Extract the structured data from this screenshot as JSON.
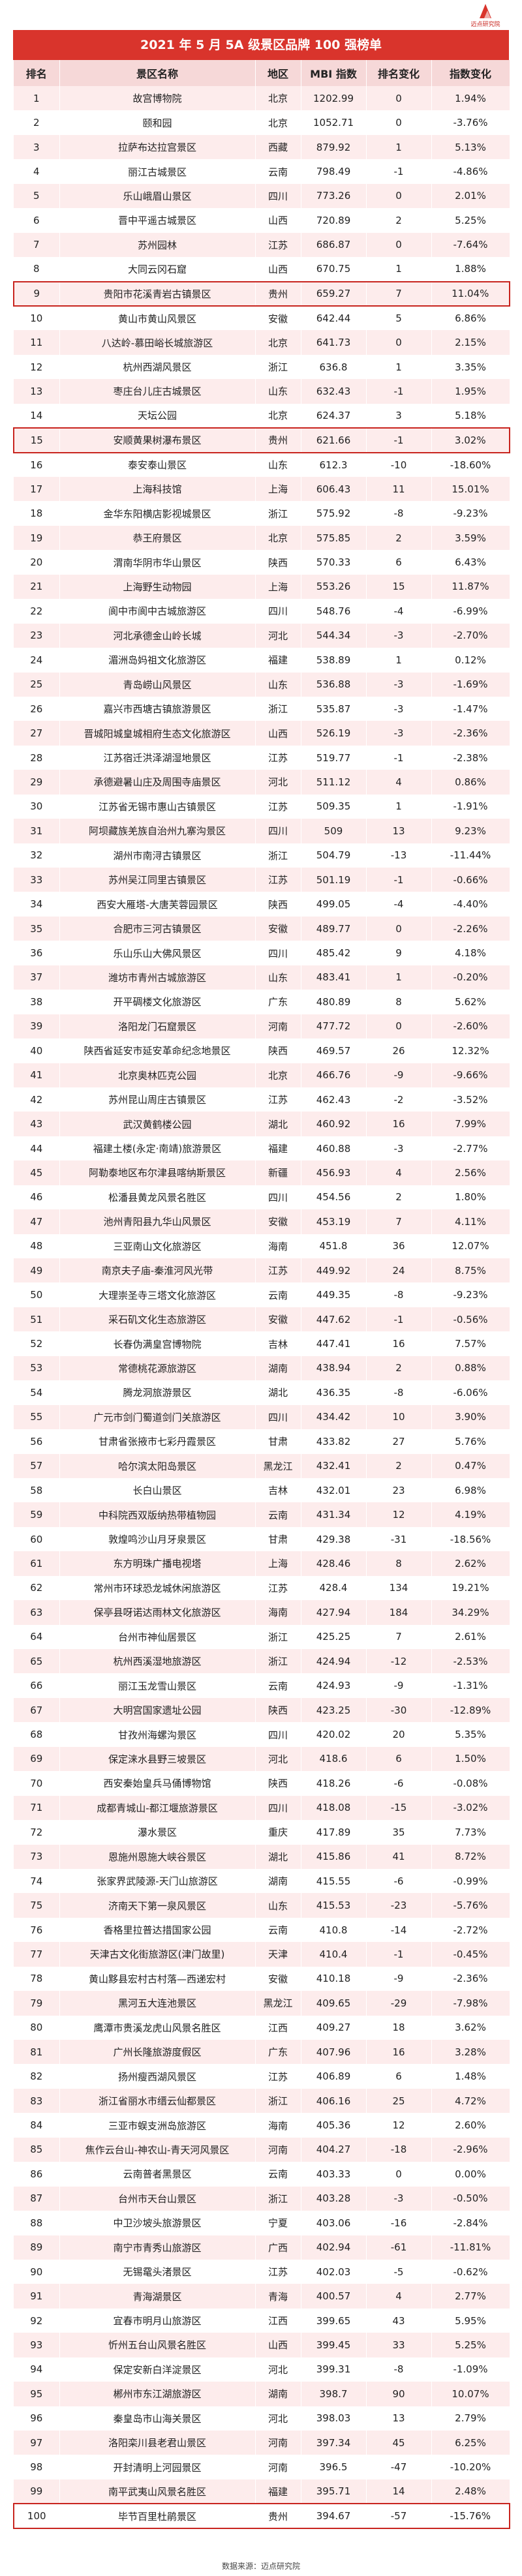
{
  "logo": {
    "text": "迈点研究院",
    "icon": "red-peak-logo-icon"
  },
  "title": "2021 年 5 月 5A 级景区品牌 100 强榜单",
  "footer": "数据来源：迈点研究院",
  "colors": {
    "title_bg": "#d9342c",
    "header_bg": "#f6d8d8",
    "stripe": "#fdecec",
    "highlight": "#c8241e"
  },
  "chart_data": {
    "type": "table",
    "columns": [
      "排名",
      "景区名称",
      "地区",
      "MBI 指数",
      "排名变化",
      "指数变化"
    ],
    "highlighted_ranks": [
      9,
      15,
      100
    ],
    "rows": [
      [
        "1",
        "故宫博物院",
        "北京",
        "1202.99",
        "0",
        "1.94%"
      ],
      [
        "2",
        "颐和园",
        "北京",
        "1052.71",
        "0",
        "-3.76%"
      ],
      [
        "3",
        "拉萨布达拉宫景区",
        "西藏",
        "879.92",
        "1",
        "5.13%"
      ],
      [
        "4",
        "丽江古城景区",
        "云南",
        "798.49",
        "-1",
        "-4.86%"
      ],
      [
        "5",
        "乐山峨眉山景区",
        "四川",
        "773.26",
        "0",
        "2.01%"
      ],
      [
        "6",
        "晋中平遥古城景区",
        "山西",
        "720.89",
        "2",
        "5.25%"
      ],
      [
        "7",
        "苏州园林",
        "江苏",
        "686.87",
        "0",
        "-7.64%"
      ],
      [
        "8",
        "大同云冈石窟",
        "山西",
        "670.75",
        "1",
        "1.88%"
      ],
      [
        "9",
        "贵阳市花溪青岩古镇景区",
        "贵州",
        "659.27",
        "7",
        "11.04%"
      ],
      [
        "10",
        "黄山市黄山风景区",
        "安徽",
        "642.44",
        "5",
        "6.86%"
      ],
      [
        "11",
        "八达岭-慕田峪长城旅游区",
        "北京",
        "641.73",
        "0",
        "2.15%"
      ],
      [
        "12",
        "杭州西湖风景区",
        "浙江",
        "636.8",
        "1",
        "3.35%"
      ],
      [
        "13",
        "枣庄台儿庄古城景区",
        "山东",
        "632.43",
        "-1",
        "1.95%"
      ],
      [
        "14",
        "天坛公园",
        "北京",
        "624.37",
        "3",
        "5.18%"
      ],
      [
        "15",
        "安顺黄果树瀑布景区",
        "贵州",
        "621.66",
        "-1",
        "3.02%"
      ],
      [
        "16",
        "泰安泰山景区",
        "山东",
        "612.3",
        "-10",
        "-18.60%"
      ],
      [
        "17",
        "上海科技馆",
        "上海",
        "606.43",
        "11",
        "15.01%"
      ],
      [
        "18",
        "金华东阳横店影视城景区",
        "浙江",
        "575.92",
        "-8",
        "-9.23%"
      ],
      [
        "19",
        "恭王府景区",
        "北京",
        "575.85",
        "2",
        "3.59%"
      ],
      [
        "20",
        "渭南华阴市华山景区",
        "陕西",
        "570.33",
        "6",
        "6.43%"
      ],
      [
        "21",
        "上海野生动物园",
        "上海",
        "553.26",
        "15",
        "11.87%"
      ],
      [
        "22",
        "阆中市阆中古城旅游区",
        "四川",
        "548.76",
        "-4",
        "-6.99%"
      ],
      [
        "23",
        "河北承德金山岭长城",
        "河北",
        "544.34",
        "-3",
        "-2.70%"
      ],
      [
        "24",
        "湄洲岛妈祖文化旅游区",
        "福建",
        "538.89",
        "1",
        "0.12%"
      ],
      [
        "25",
        "青岛崂山风景区",
        "山东",
        "536.88",
        "-3",
        "-1.69%"
      ],
      [
        "26",
        "嘉兴市西塘古镇旅游景区",
        "浙江",
        "535.87",
        "-3",
        "-1.47%"
      ],
      [
        "27",
        "晋城阳城皇城相府生态文化旅游区",
        "山西",
        "526.19",
        "-3",
        "-2.36%"
      ],
      [
        "28",
        "江苏宿迁洪泽湖湿地景区",
        "江苏",
        "519.77",
        "-1",
        "-2.38%"
      ],
      [
        "29",
        "承德避暑山庄及周围寺庙景区",
        "河北",
        "511.12",
        "4",
        "0.86%"
      ],
      [
        "30",
        "江苏省无锡市惠山古镇景区",
        "江苏",
        "509.35",
        "1",
        "-1.91%"
      ],
      [
        "31",
        "阿坝藏族羌族自治州九寨沟景区",
        "四川",
        "509",
        "13",
        "9.23%"
      ],
      [
        "32",
        "湖州市南浔古镇景区",
        "浙江",
        "504.79",
        "-13",
        "-11.44%"
      ],
      [
        "33",
        "苏州吴江同里古镇景区",
        "江苏",
        "501.19",
        "-1",
        "-0.66%"
      ],
      [
        "34",
        "西安大雁塔-大唐芙蓉园景区",
        "陕西",
        "499.05",
        "-4",
        "-4.40%"
      ],
      [
        "35",
        "合肥市三河古镇景区",
        "安徽",
        "489.77",
        "0",
        "-2.26%"
      ],
      [
        "36",
        "乐山乐山大佛风景区",
        "四川",
        "485.42",
        "9",
        "4.18%"
      ],
      [
        "37",
        "潍坊市青州古城旅游区",
        "山东",
        "483.41",
        "1",
        "-0.20%"
      ],
      [
        "38",
        "开平碉楼文化旅游区",
        "广东",
        "480.89",
        "8",
        "5.62%"
      ],
      [
        "39",
        "洛阳龙门石窟景区",
        "河南",
        "477.72",
        "0",
        "-2.60%"
      ],
      [
        "40",
        "陕西省延安市延安革命纪念地景区",
        "陕西",
        "469.57",
        "26",
        "12.32%"
      ],
      [
        "41",
        "北京奥林匹克公园",
        "北京",
        "466.76",
        "-9",
        "-9.66%"
      ],
      [
        "42",
        "苏州昆山周庄古镇景区",
        "江苏",
        "462.43",
        "-2",
        "-3.52%"
      ],
      [
        "43",
        "武汉黄鹤楼公园",
        "湖北",
        "460.92",
        "16",
        "7.99%"
      ],
      [
        "44",
        "福建土楼(永定·南靖)旅游景区",
        "福建",
        "460.88",
        "-3",
        "-2.77%"
      ],
      [
        "45",
        "阿勒泰地区布尔津县喀纳斯景区",
        "新疆",
        "456.93",
        "4",
        "2.56%"
      ],
      [
        "46",
        "松潘县黄龙风景名胜区",
        "四川",
        "454.56",
        "2",
        "1.80%"
      ],
      [
        "47",
        "池州青阳县九华山风景区",
        "安徽",
        "453.19",
        "7",
        "4.11%"
      ],
      [
        "48",
        "三亚南山文化旅游区",
        "海南",
        "451.8",
        "36",
        "12.07%"
      ],
      [
        "49",
        "南京夫子庙-秦淮河风光带",
        "江苏",
        "449.92",
        "24",
        "8.75%"
      ],
      [
        "50",
        "大理崇圣寺三塔文化旅游区",
        "云南",
        "449.35",
        "-8",
        "-9.23%"
      ],
      [
        "51",
        "采石矶文化生态旅游区",
        "安徽",
        "447.62",
        "-1",
        "-0.56%"
      ],
      [
        "52",
        "长春伪满皇宫博物院",
        "吉林",
        "447.41",
        "16",
        "7.57%"
      ],
      [
        "53",
        "常德桃花源旅游区",
        "湖南",
        "438.94",
        "2",
        "0.88%"
      ],
      [
        "54",
        "腾龙洞旅游景区",
        "湖北",
        "436.35",
        "-8",
        "-6.06%"
      ],
      [
        "55",
        "广元市剑门蜀道剑门关旅游区",
        "四川",
        "434.42",
        "10",
        "3.90%"
      ],
      [
        "56",
        "甘肃省张掖市七彩丹霞景区",
        "甘肃",
        "433.82",
        "27",
        "5.76%"
      ],
      [
        "57",
        "哈尔滨太阳岛景区",
        "黑龙江",
        "432.41",
        "2",
        "0.47%"
      ],
      [
        "58",
        "长白山景区",
        "吉林",
        "432.01",
        "23",
        "6.98%"
      ],
      [
        "59",
        "中科院西双版纳热带植物园",
        "云南",
        "431.34",
        "12",
        "4.19%"
      ],
      [
        "60",
        "敦煌鸣沙山月牙泉景区",
        "甘肃",
        "429.38",
        "-31",
        "-18.56%"
      ],
      [
        "61",
        "东方明珠广播电视塔",
        "上海",
        "428.46",
        "8",
        "2.62%"
      ],
      [
        "62",
        "常州市环球恐龙城休闲旅游区",
        "江苏",
        "428.4",
        "134",
        "19.21%"
      ],
      [
        "63",
        "保亭县呀诺达雨林文化旅游区",
        "海南",
        "427.94",
        "184",
        "34.29%"
      ],
      [
        "64",
        "台州市神仙居景区",
        "浙江",
        "425.25",
        "7",
        "2.61%"
      ],
      [
        "65",
        "杭州西溪湿地旅游区",
        "浙江",
        "424.94",
        "-12",
        "-2.53%"
      ],
      [
        "66",
        "丽江玉龙雪山景区",
        "云南",
        "424.93",
        "-9",
        "-1.31%"
      ],
      [
        "67",
        "大明宫国家遗址公园",
        "陕西",
        "423.25",
        "-30",
        "-12.89%"
      ],
      [
        "68",
        "甘孜州海螺沟景区",
        "四川",
        "420.02",
        "20",
        "5.35%"
      ],
      [
        "69",
        "保定涞水县野三坡景区",
        "河北",
        "418.6",
        "6",
        "1.50%"
      ],
      [
        "70",
        "西安秦始皇兵马俑博物馆",
        "陕西",
        "418.26",
        "-6",
        "-0.08%"
      ],
      [
        "71",
        "成都青城山-都江堰旅游景区",
        "四川",
        "418.08",
        "-15",
        "-3.02%"
      ],
      [
        "72",
        "瀑水景区",
        "重庆",
        "417.89",
        "35",
        "7.73%"
      ],
      [
        "73",
        "恩施州恩施大峡谷景区",
        "湖北",
        "415.86",
        "41",
        "8.72%"
      ],
      [
        "74",
        "张家界武陵源-天门山旅游区",
        "湖南",
        "415.55",
        "-6",
        "-0.99%"
      ],
      [
        "75",
        "济南天下第一泉风景区",
        "山东",
        "415.53",
        "-23",
        "-5.76%"
      ],
      [
        "76",
        "香格里拉普达措国家公园",
        "云南",
        "410.8",
        "-14",
        "-2.72%"
      ],
      [
        "77",
        "天津古文化街旅游区(津门故里)",
        "天津",
        "410.4",
        "-1",
        "-0.45%"
      ],
      [
        "78",
        "黄山黟县宏村古村落—西递宏村",
        "安徽",
        "410.18",
        "-9",
        "-2.36%"
      ],
      [
        "79",
        "黑河五大连池景区",
        "黑龙江",
        "409.65",
        "-29",
        "-7.98%"
      ],
      [
        "80",
        "鹰潭市贵溪龙虎山风景名胜区",
        "江西",
        "409.27",
        "18",
        "3.62%"
      ],
      [
        "81",
        "广州长隆旅游度假区",
        "广东",
        "407.96",
        "16",
        "3.28%"
      ],
      [
        "82",
        "扬州瘦西湖风景区",
        "江苏",
        "406.89",
        "6",
        "1.48%"
      ],
      [
        "83",
        "浙江省丽水市缙云仙都景区",
        "浙江",
        "406.16",
        "25",
        "4.72%"
      ],
      [
        "84",
        "三亚市蜈支洲岛旅游区",
        "海南",
        "405.36",
        "12",
        "2.60%"
      ],
      [
        "85",
        "焦作云台山-神农山-青天河风景区",
        "河南",
        "404.27",
        "-18",
        "-2.96%"
      ],
      [
        "86",
        "云南普者黑景区",
        "云南",
        "403.33",
        "0",
        "0.00%"
      ],
      [
        "87",
        "台州市天台山景区",
        "浙江",
        "403.28",
        "-3",
        "-0.50%"
      ],
      [
        "88",
        "中卫沙坡头旅游景区",
        "宁夏",
        "403.06",
        "-16",
        "-2.84%"
      ],
      [
        "89",
        "南宁市青秀山旅游区",
        "广西",
        "402.94",
        "-61",
        "-11.81%"
      ],
      [
        "90",
        "无锡鼋头渚景区",
        "江苏",
        "402.03",
        "-5",
        "-0.62%"
      ],
      [
        "91",
        "青海湖景区",
        "青海",
        "400.57",
        "4",
        "2.77%"
      ],
      [
        "92",
        "宜春市明月山旅游区",
        "江西",
        "399.65",
        "43",
        "5.95%"
      ],
      [
        "93",
        "忻州五台山风景名胜区",
        "山西",
        "399.45",
        "33",
        "5.25%"
      ],
      [
        "94",
        "保定安新白洋淀景区",
        "河北",
        "399.31",
        "-8",
        "-1.09%"
      ],
      [
        "95",
        "郴州市东江湖旅游区",
        "湖南",
        "398.7",
        "90",
        "10.07%"
      ],
      [
        "96",
        "秦皇岛市山海关景区",
        "河北",
        "398.03",
        "13",
        "2.79%"
      ],
      [
        "97",
        "洛阳栾川县老君山景区",
        "河南",
        "397.34",
        "45",
        "6.25%"
      ],
      [
        "98",
        "开封清明上河园景区",
        "河南",
        "396.5",
        "-47",
        "-10.20%"
      ],
      [
        "99",
        "南平武夷山风景名胜区",
        "福建",
        "395.71",
        "14",
        "2.48%"
      ],
      [
        "100",
        "毕节百里杜鹃景区",
        "贵州",
        "394.67",
        "-57",
        "-15.76%"
      ]
    ]
  }
}
